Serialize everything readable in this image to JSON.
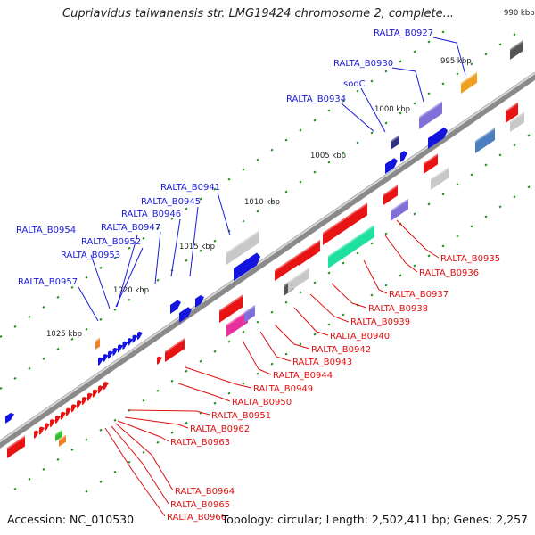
{
  "title": "Cupriavidus taiwanensis str. LMG19424 chromosome 2, complete...",
  "footer": {
    "accession": "Accession: NC_010530",
    "topology": "Topology: circular; Length: 2,502,411 bp; Genes: 2,257"
  },
  "ticks": [
    "990 kbp",
    "995 kbp",
    "1000 kbp",
    "1005 kbp",
    "1010 kbp",
    "1015 kbp",
    "1020 kbp",
    "1025 kbp"
  ],
  "labels_top": [
    "RALTA_B0927",
    "RALTA_B0930",
    "sodC",
    "RALTA_B0934",
    "RALTA_B0941",
    "RALTA_B0945",
    "RALTA_B0946",
    "RALTA_B0947",
    "RALTA_B0954",
    "RALTA_B0952",
    "RALTA_B0953",
    "RALTA_B0957"
  ],
  "labels_bottom": [
    "RALTA_B0935",
    "RALTA_B0936",
    "RALTA_B0937",
    "RALTA_B0938",
    "RALTA_B0939",
    "RALTA_B0940",
    "RALTA_B0942",
    "RALTA_B0943",
    "RALTA_B0944",
    "RALTA_B0949",
    "RALTA_B0950",
    "RALTA_B0951",
    "RALTA_B0962",
    "RALTA_B0963",
    "RALTA_B0964",
    "RALTA_B0965",
    "RALTA_B0966"
  ],
  "colors": {
    "top_label": "#1a1ad8",
    "bottom_label": "#e01010",
    "forward_gene": "#1414e0",
    "reverse_gene": "#e81414",
    "backbone": "#8a8a8a",
    "gc_dots": "#2a8a2a"
  }
}
